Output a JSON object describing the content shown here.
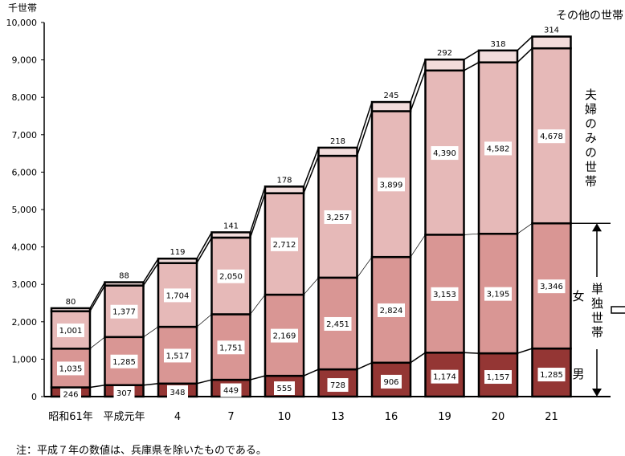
{
  "chart_data": {
    "type": "bar",
    "stacked": true,
    "unit_label": "千世帯",
    "categories": [
      "昭和61年",
      "平成元年",
      "4",
      "7",
      "10",
      "13",
      "16",
      "19",
      "20",
      "21"
    ],
    "series": [
      {
        "name": "男",
        "color": "#943634",
        "values": [
          246,
          307,
          348,
          449,
          555,
          728,
          906,
          1174,
          1157,
          1285
        ]
      },
      {
        "name": "女",
        "color": "#d99694",
        "values": [
          1035,
          1285,
          1517,
          1751,
          2169,
          2451,
          2824,
          3153,
          3195,
          3346
        ]
      },
      {
        "name": "夫婦のみの世帯",
        "color": "#e6b9b8",
        "values": [
          1001,
          1377,
          1704,
          2050,
          2712,
          3257,
          3899,
          4390,
          4582,
          4678
        ]
      },
      {
        "name": "その他の世帯",
        "color": "#f2dcdb",
        "values": [
          80,
          88,
          119,
          141,
          178,
          218,
          245,
          292,
          318,
          314
        ]
      }
    ],
    "group_label": "単独世帯",
    "ylim": [
      0,
      10000
    ],
    "yticks": [
      0,
      1000,
      2000,
      3000,
      4000,
      5000,
      6000,
      7000,
      8000,
      9000,
      10000
    ],
    "ytick_labels": [
      "0",
      "1,000",
      "2,000",
      "3,000",
      "4,000",
      "5,000",
      "6,000",
      "7,000",
      "8,000",
      "9,000",
      "10,000"
    ],
    "grid": false,
    "connector_lines": true
  },
  "note": "注：平成７年の数値は、兵庫県を除いたものである。"
}
